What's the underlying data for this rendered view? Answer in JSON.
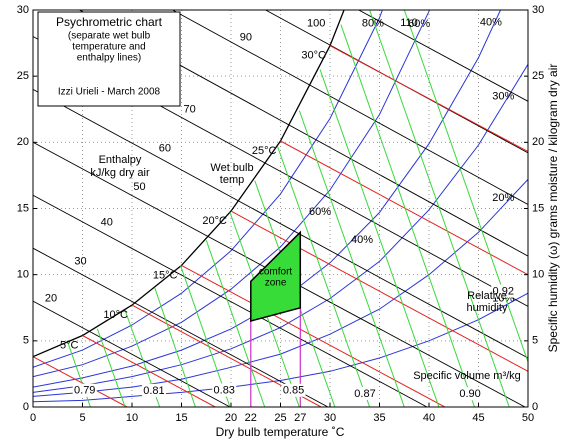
{
  "chart_data": {
    "type": "psychrometric",
    "title": "Psychrometric chart",
    "subtitle_lines": [
      "(separate wet bulb",
      "temperature and",
      "enthalpy lines)"
    ],
    "author": "Izzi Urieli - March 2008",
    "x_label": "Dry bulb temperature ˚C",
    "y2_label": "Specific humidity (ω) grams moisture / kilogram dry air",
    "xlim": [
      0,
      50
    ],
    "ylim": [
      0,
      30
    ],
    "y2lim": [
      0,
      30
    ],
    "xticks": [
      0,
      5,
      10,
      15,
      20,
      25,
      30,
      35,
      40,
      45,
      50
    ],
    "yticks": [
      0,
      5,
      10,
      15,
      20,
      25,
      30
    ],
    "y2ticks": [
      0,
      5,
      10,
      15,
      20,
      25,
      30
    ],
    "grid": true,
    "enthalpy": {
      "color": "#000000",
      "title": [
        "Enthalpy",
        "kJ/kg dry air"
      ],
      "lines": [
        {
          "label": "20",
          "x": [
            0,
            19.9
          ],
          "y": [
            8.0,
            0
          ]
        },
        {
          "label": "30",
          "x": [
            0,
            29.8
          ],
          "y": [
            12.0,
            0
          ]
        },
        {
          "label": "40",
          "x": [
            0,
            39.8
          ],
          "y": [
            16.0,
            0
          ]
        },
        {
          "label": "50",
          "x": [
            0,
            49.7
          ],
          "y": [
            20.0,
            0
          ]
        },
        {
          "label": "60",
          "x": [
            0,
            50
          ],
          "y": [
            24.0,
            3.7
          ]
        },
        {
          "label": "70",
          "x": [
            0,
            50
          ],
          "y": [
            28.0,
            7.6
          ]
        },
        {
          "label": null,
          "x": [
            4.7,
            50
          ],
          "y": [
            30,
            11.4
          ]
        },
        {
          "label": "90",
          "x": [
            14.1,
            50
          ],
          "y": [
            30,
            15.3
          ]
        },
        {
          "label": "100",
          "x": [
            23.5,
            50
          ],
          "y": [
            30,
            19.2
          ]
        },
        {
          "label": "110",
          "x": [
            32.9,
            50
          ],
          "y": [
            30,
            23.1
          ]
        }
      ]
    },
    "wet_bulb": {
      "color": "#e3231f",
      "title": [
        "Wet bulb",
        "temp"
      ],
      "lines": [
        {
          "label": null,
          "x": [
            0,
            9.5
          ],
          "y": [
            3.8,
            0
          ]
        },
        {
          "label": "5°C",
          "x": [
            5,
            18.4
          ],
          "y": [
            5.4,
            0
          ]
        },
        {
          "label": "10°C",
          "x": [
            10,
            29.1
          ],
          "y": [
            7.7,
            0
          ]
        },
        {
          "label": "15°C",
          "x": [
            15,
            41.6
          ],
          "y": [
            10.7,
            0
          ]
        },
        {
          "label": "20°C",
          "x": [
            20,
            50
          ],
          "y": [
            14.8,
            2.7
          ]
        },
        {
          "label": "25°C",
          "x": [
            25,
            50
          ],
          "y": [
            20.1,
            10.0
          ]
        },
        {
          "label": "30°C",
          "x": [
            30,
            50
          ],
          "y": [
            27.3,
            19.3
          ]
        }
      ]
    },
    "relative_humidity": {
      "color": "#2a35d8",
      "saturation_color": "#000000",
      "title": [
        "Relative",
        "humidity"
      ],
      "x": [
        0,
        5,
        10,
        15,
        20,
        25,
        30,
        35,
        40,
        45,
        50
      ],
      "series": [
        {
          "name": null,
          "values": [
            3.8,
            5.4,
            7.7,
            10.7,
            14.8,
            20.1,
            27.3,
            36.8,
            49.8,
            65.9,
            86.2
          ]
        },
        {
          "name": "80%",
          "values": [
            3.0,
            4.3,
            6.2,
            8.6,
            11.8,
            16.1,
            21.8,
            29.4,
            39.8,
            52.7,
            69.0
          ]
        },
        {
          "name": "60%",
          "values": [
            2.3,
            3.2,
            4.6,
            6.4,
            8.9,
            12.1,
            16.4,
            22.1,
            29.9,
            39.5,
            51.7
          ]
        },
        {
          "name": "40%",
          "values": [
            1.5,
            2.2,
            3.1,
            4.3,
            5.9,
            8.0,
            10.9,
            14.7,
            19.9,
            26.4,
            34.5
          ]
        },
        {
          "name": "30%",
          "values": [
            1.1,
            1.6,
            2.3,
            3.2,
            4.4,
            6.0,
            8.2,
            11.0,
            14.9,
            19.8,
            25.9
          ]
        },
        {
          "name": "20%",
          "values": [
            0.8,
            1.1,
            1.5,
            2.1,
            3.0,
            4.0,
            5.5,
            7.4,
            10.0,
            13.2,
            17.2
          ]
        },
        {
          "name": "10%",
          "values": [
            0.4,
            0.5,
            0.8,
            1.1,
            1.5,
            2.0,
            2.7,
            3.7,
            5.0,
            6.6,
            8.6
          ]
        }
      ]
    },
    "specific_volume": {
      "color": "#3ad83a",
      "label_color": "#1f8f1f",
      "title": "Specific volume m³/kg",
      "lines": [
        {
          "label": "0.79",
          "x": [
            3.5,
            5.8
          ],
          "y": [
            4.9,
            0
          ]
        },
        {
          "label": null,
          "x": [
            6.5,
            9.3
          ],
          "y": [
            5.9,
            0
          ]
        },
        {
          "label": "0.81",
          "x": [
            9.3,
            12.8
          ],
          "y": [
            7.3,
            0
          ]
        },
        {
          "label": null,
          "x": [
            12.3,
            16.4
          ],
          "y": [
            9.0,
            0
          ]
        },
        {
          "label": "0.83",
          "x": [
            14.9,
            19.9
          ],
          "y": [
            10.7,
            0
          ]
        },
        {
          "label": null,
          "x": [
            17.5,
            23.4
          ],
          "y": [
            12.6,
            0
          ]
        },
        {
          "label": "0.85",
          "x": [
            19.9,
            26.9
          ],
          "y": [
            14.7,
            0
          ]
        },
        {
          "label": null,
          "x": [
            22.4,
            30.5
          ],
          "y": [
            17.1,
            0
          ]
        },
        {
          "label": "0.87",
          "x": [
            24.7,
            34.0
          ],
          "y": [
            19.7,
            0
          ]
        },
        {
          "label": null,
          "x": [
            26.9,
            37.5
          ],
          "y": [
            22.4,
            0
          ]
        },
        {
          "label": null,
          "x": [
            29.0,
            41.0
          ],
          "y": [
            25.5,
            0
          ]
        },
        {
          "label": "0.90",
          "x": [
            31.1,
            44.6
          ],
          "y": [
            28.9,
            0
          ]
        },
        {
          "label": null,
          "x": [
            34.0,
            48.1
          ],
          "y": [
            30,
            0
          ]
        },
        {
          "label": "0.92",
          "x": [
            37.5,
            50
          ],
          "y": [
            30,
            3.4
          ]
        }
      ]
    },
    "comfort_zone": {
      "color": "#38dc38",
      "label": [
        "comfort",
        "zone"
      ],
      "x": [
        22,
        22,
        27,
        27
      ],
      "y": [
        6.5,
        9.5,
        13.2,
        7.5
      ],
      "bounds": [
        22,
        27
      ],
      "bound_color": "#c830c8",
      "rh_labels": [
        "60%",
        "40%"
      ]
    }
  }
}
